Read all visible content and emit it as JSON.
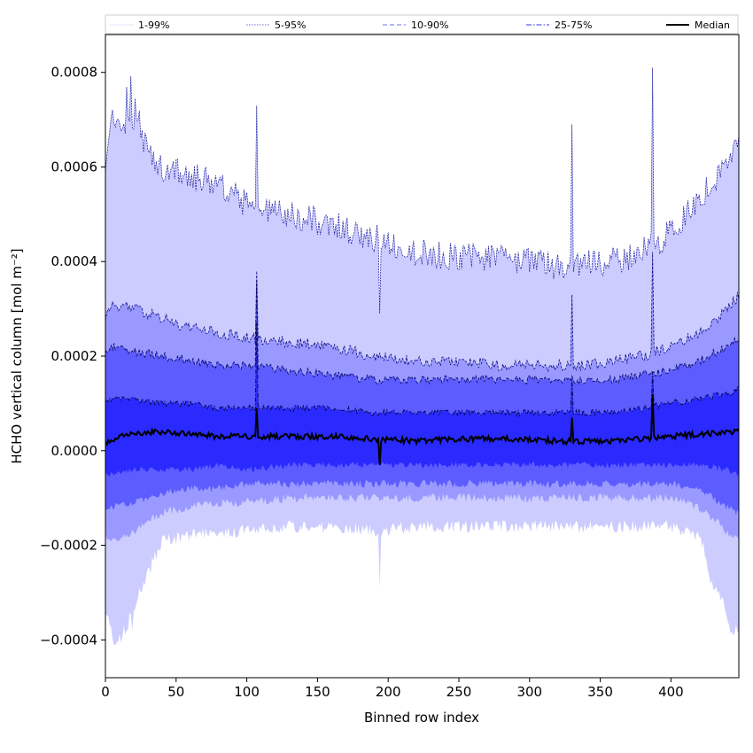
{
  "chart_data": {
    "type": "area",
    "xlabel": "Binned row index",
    "ylabel": "HCHO vertical column [mol m⁻²]",
    "xlim": [
      0,
      448
    ],
    "ylim": [
      -0.00048,
      0.00088
    ],
    "xticks": [
      0,
      50,
      100,
      150,
      200,
      250,
      300,
      350,
      400
    ],
    "yticks": [
      -0.0004,
      -0.0002,
      0.0,
      0.0002,
      0.0004,
      0.0006,
      0.0008
    ],
    "ytick_labels": [
      "−0.0004",
      "−0.0002",
      "0.0000",
      "0.0002",
      "0.0004",
      "0.0006",
      "0.0008"
    ],
    "legend_position": "top",
    "legend": [
      {
        "label": "1-99%",
        "color": "#c8c8ff",
        "style": "dotted"
      },
      {
        "label": "5-95%",
        "color": "#6666cc",
        "style": "dotted"
      },
      {
        "label": "10-90%",
        "color": "#6e6ef0",
        "style": "dashed"
      },
      {
        "label": "25-75%",
        "color": "#3a3ae6",
        "style": "dashdot"
      },
      {
        "label": "Median",
        "color": "#000000",
        "style": "solid"
      }
    ],
    "band_colors": {
      "p1_99": "#ccccff",
      "p5_95": "#9999ff",
      "p10_90": "#5c5cff",
      "p25_75": "#2a2aff"
    },
    "control_points": {
      "x": [
        0,
        5,
        20,
        40,
        60,
        80,
        100,
        130,
        160,
        190,
        220,
        250,
        280,
        300,
        320,
        340,
        360,
        380,
        400,
        420,
        440,
        448
      ],
      "p99": [
        0.00058,
        0.0007,
        0.00068,
        0.0006,
        0.00058,
        0.00057,
        0.00052,
        0.0005,
        0.00048,
        0.00045,
        0.00042,
        0.00041,
        0.00041,
        0.0004,
        0.00039,
        0.0004,
        0.0004,
        0.00042,
        0.00046,
        0.00053,
        0.00061,
        0.00064
      ],
      "p95": [
        0.00028,
        0.00031,
        0.0003,
        0.00028,
        0.00026,
        0.00025,
        0.00024,
        0.00023,
        0.00022,
        0.0002,
        0.00019,
        0.00019,
        0.00018,
        0.00018,
        0.00018,
        0.00018,
        0.00019,
        0.0002,
        0.00022,
        0.00025,
        0.0003,
        0.00033
      ],
      "p90": [
        0.00021,
        0.00022,
        0.00021,
        0.0002,
        0.00019,
        0.00018,
        0.00018,
        0.00017,
        0.00016,
        0.00015,
        0.00015,
        0.00015,
        0.00015,
        0.00015,
        0.00015,
        0.00015,
        0.00015,
        0.00016,
        0.00017,
        0.00019,
        0.00022,
        0.00024
      ],
      "p75": [
        0.0001,
        0.00011,
        0.00011,
        0.0001,
        0.0001,
        9e-05,
        9e-05,
        9e-05,
        9e-05,
        8e-05,
        8e-05,
        8e-05,
        8e-05,
        8e-05,
        8e-05,
        8e-05,
        8e-05,
        9e-05,
        0.0001,
        0.00011,
        0.00012,
        0.00013
      ],
      "median": [
        1.5e-05,
        2.5e-05,
        3.5e-05,
        4e-05,
        3.5e-05,
        3e-05,
        3e-05,
        3e-05,
        3e-05,
        2.5e-05,
        2e-05,
        2.5e-05,
        2.5e-05,
        2.5e-05,
        2e-05,
        2e-05,
        2e-05,
        2.5e-05,
        3e-05,
        3.5e-05,
        4e-05,
        4e-05
      ],
      "p25": [
        -5e-05,
        -5e-05,
        -4e-05,
        -4e-05,
        -4e-05,
        -3e-05,
        -4e-05,
        -3e-05,
        -3e-05,
        -3e-05,
        -3e-05,
        -3e-05,
        -3e-05,
        -3e-05,
        -3e-05,
        -3e-05,
        -3e-05,
        -3e-05,
        -3e-05,
        -3e-05,
        -4e-05,
        -5e-05
      ],
      "p10": [
        -0.00012,
        -0.00012,
        -0.00011,
        -9e-05,
        -8e-05,
        -8e-05,
        -7e-05,
        -7e-05,
        -7e-05,
        -7e-05,
        -7e-05,
        -7e-05,
        -7e-05,
        -7e-05,
        -7e-05,
        -7e-05,
        -7e-05,
        -7e-05,
        -7e-05,
        -8e-05,
        -0.00012,
        -0.00013
      ],
      "p5": [
        -0.00018,
        -0.00019,
        -0.00017,
        -0.00013,
        -0.00012,
        -0.00011,
        -0.00011,
        -0.0001,
        -0.0001,
        -0.0001,
        -0.0001,
        -0.0001,
        -0.0001,
        -0.0001,
        -0.0001,
        -0.0001,
        -0.0001,
        -0.0001,
        -0.0001,
        -0.00012,
        -0.00017,
        -0.00019
      ],
      "p1": [
        -0.00035,
        -0.00038,
        -0.00033,
        -0.00019,
        -0.00018,
        -0.00017,
        -0.00017,
        -0.00016,
        -0.00016,
        -0.00017,
        -0.00016,
        -0.00016,
        -0.00016,
        -0.00016,
        -0.00016,
        -0.00016,
        -0.00016,
        -0.00016,
        -0.00016,
        -0.00018,
        -0.00034,
        -0.00038
      ]
    },
    "spikes": [
      {
        "x": 107,
        "median": 9e-05,
        "p75": 0.00027,
        "p90": 0.00036,
        "p95": 0.00038,
        "p99": 0.00073
      },
      {
        "x": 194,
        "median": -3e-05,
        "p99": 0.00029,
        "p1": -0.00029
      },
      {
        "x": 330,
        "median": 7e-05,
        "p75": 0.00015,
        "p95": 0.00033,
        "p99": 0.00069
      },
      {
        "x": 387,
        "median": 0.00012,
        "p75": 0.00032,
        "p95": 0.00042,
        "p99": 0.00081
      }
    ]
  }
}
